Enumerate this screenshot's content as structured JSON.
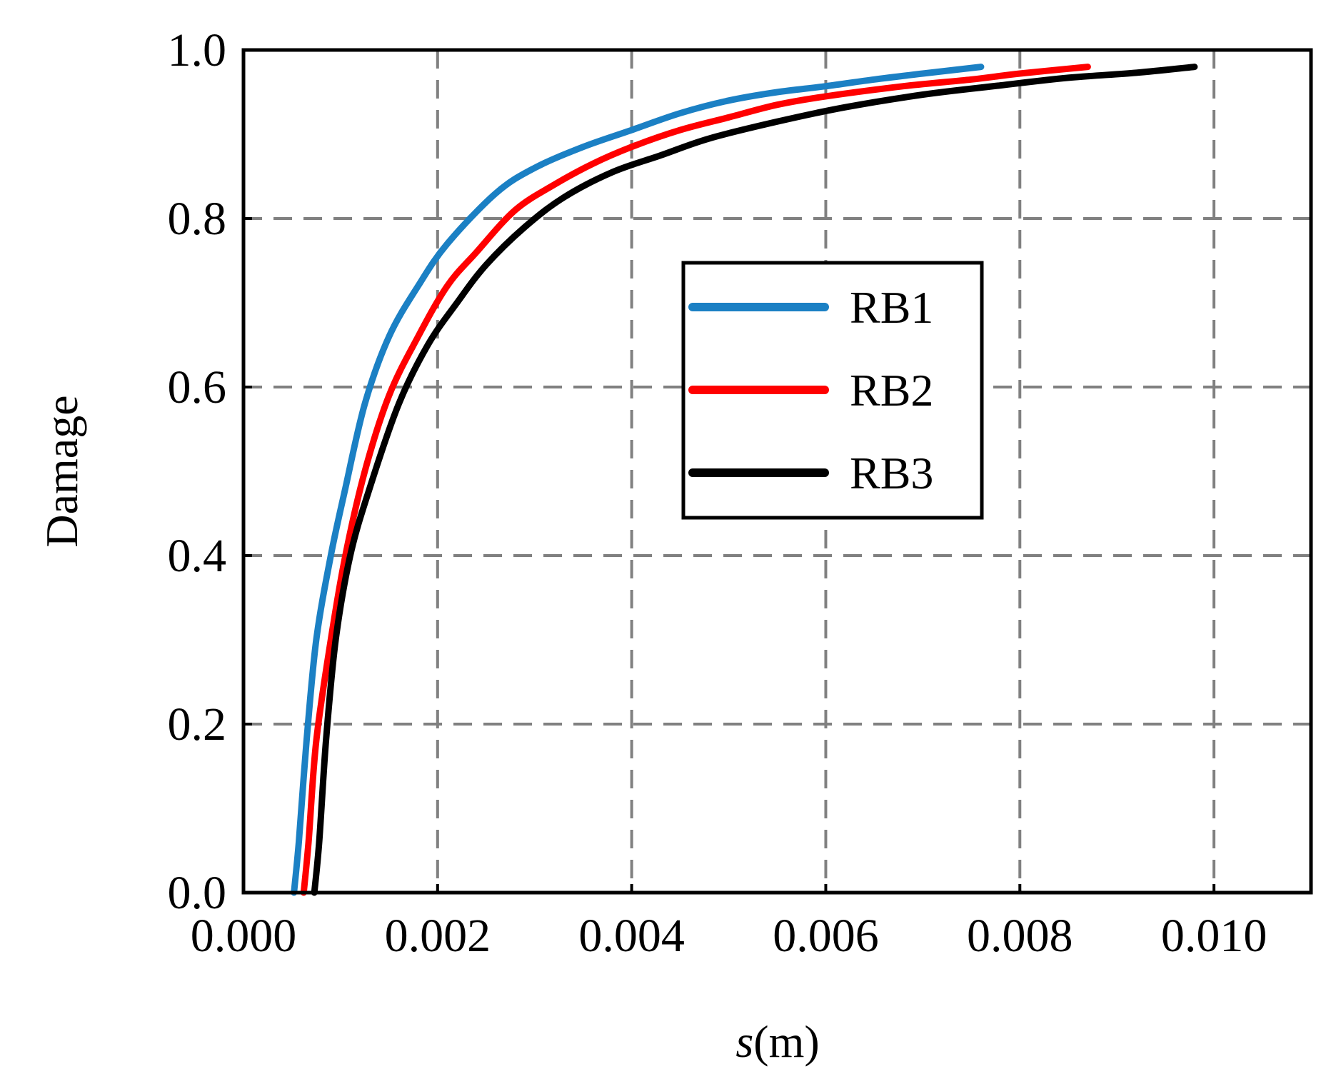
{
  "chart_data": {
    "type": "line",
    "title": "",
    "xlabel_var": "s",
    "xlabel_unit": "(m)",
    "ylabel": "Damage",
    "xlim": [
      0.0,
      0.011
    ],
    "ylim": [
      0.0,
      1.0
    ],
    "x_ticks": [
      "0.000",
      "0.002",
      "0.004",
      "0.006",
      "0.008",
      "0.010"
    ],
    "y_ticks": [
      "0.0",
      "0.2",
      "0.4",
      "0.6",
      "0.8",
      "1.0"
    ],
    "grid": true,
    "legend_position": "center-right",
    "series": [
      {
        "name": "RB1",
        "color": "#1b80c4",
        "x": [
          0.00052,
          0.00057,
          0.00065,
          0.00075,
          0.0009,
          0.00105,
          0.00125,
          0.0015,
          0.0018,
          0.0021,
          0.0026,
          0.003,
          0.0035,
          0.004,
          0.0045,
          0.005,
          0.0055,
          0.006,
          0.0065,
          0.007,
          0.0076
        ],
        "y": [
          0.0,
          0.06,
          0.18,
          0.3,
          0.4,
          0.48,
          0.58,
          0.66,
          0.72,
          0.77,
          0.83,
          0.86,
          0.885,
          0.905,
          0.925,
          0.94,
          0.95,
          0.957,
          0.965,
          0.972,
          0.98
        ]
      },
      {
        "name": "RB2",
        "color": "#ff0000",
        "x": [
          0.00062,
          0.00067,
          0.00075,
          0.0009,
          0.00105,
          0.00125,
          0.0015,
          0.0018,
          0.0021,
          0.0024,
          0.0028,
          0.0032,
          0.0036,
          0.004,
          0.0045,
          0.005,
          0.0055,
          0.006,
          0.0068,
          0.0075,
          0.008,
          0.0087
        ],
        "y": [
          0.0,
          0.06,
          0.18,
          0.3,
          0.4,
          0.5,
          0.59,
          0.66,
          0.72,
          0.76,
          0.81,
          0.84,
          0.865,
          0.885,
          0.905,
          0.92,
          0.935,
          0.945,
          0.957,
          0.965,
          0.972,
          0.98
        ]
      },
      {
        "name": "RB3",
        "color": "#000000",
        "x": [
          0.00073,
          0.00078,
          0.00085,
          0.00095,
          0.0011,
          0.0013,
          0.0016,
          0.0019,
          0.0022,
          0.0025,
          0.0029,
          0.0033,
          0.0038,
          0.0043,
          0.0048,
          0.0055,
          0.0062,
          0.007,
          0.0078,
          0.0085,
          0.0092,
          0.0098
        ],
        "y": [
          0.0,
          0.06,
          0.18,
          0.3,
          0.4,
          0.48,
          0.58,
          0.65,
          0.7,
          0.745,
          0.79,
          0.825,
          0.855,
          0.875,
          0.895,
          0.915,
          0.932,
          0.947,
          0.958,
          0.967,
          0.973,
          0.98
        ]
      }
    ]
  }
}
